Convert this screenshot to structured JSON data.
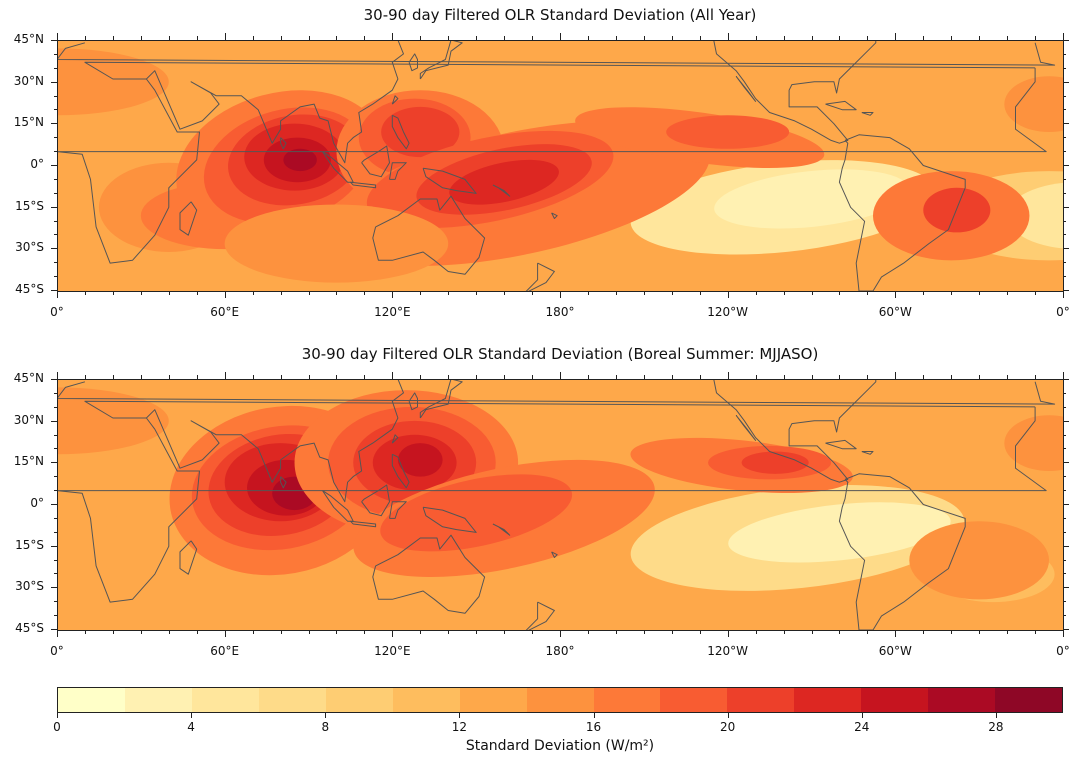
{
  "panels": [
    {
      "title": "30-90 day Filtered OLR Standard Deviation (All Year)",
      "season": "all-year"
    },
    {
      "title": "30-90 day Filtered OLR Standard Deviation (Boreal Summer: MJJASO)",
      "season": "boreal-summer"
    }
  ],
  "lat_labels": [
    "45°N",
    "30°N",
    "15°N",
    "0°",
    "15°S",
    "30°S",
    "45°S"
  ],
  "lon_labels": [
    "0°",
    "60°E",
    "120°E",
    "180°",
    "120°W",
    "60°W",
    "0°"
  ],
  "colorbar": {
    "label": "Standard Deviation (W/m²)",
    "tick_labels": [
      "0",
      "4",
      "8",
      "12",
      "16",
      "20",
      "24",
      "28"
    ],
    "min": 0,
    "max": 30,
    "step": 2,
    "colors": [
      "#ffffc8",
      "#fff1b2",
      "#ffe69c",
      "#fedb89",
      "#fecd73",
      "#febd5e",
      "#fea84a",
      "#fd923e",
      "#fd7938",
      "#f85c32",
      "#ed402a",
      "#dd2722",
      "#c6141f",
      "#ab0a24",
      "#8e0726"
    ]
  },
  "map": {
    "extent": {
      "lon_min": 0,
      "lon_max": 360,
      "lat_min": -45,
      "lat_max": 45
    },
    "background_level": 6,
    "coastline_color": "#555555"
  }
}
